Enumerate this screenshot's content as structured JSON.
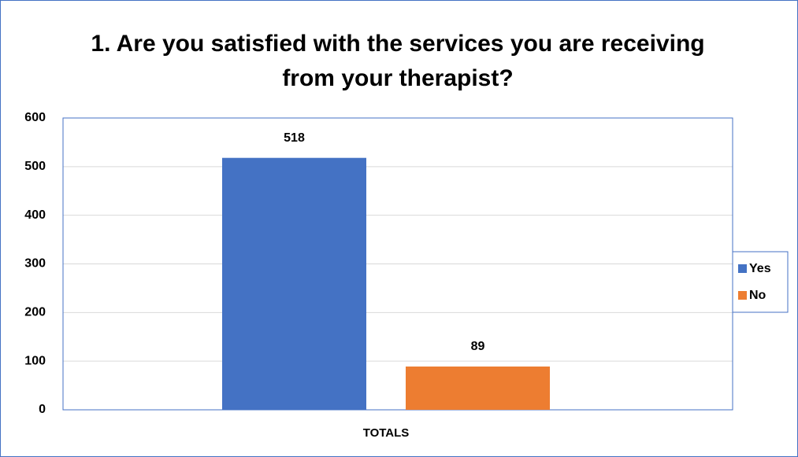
{
  "chart_data": {
    "type": "bar",
    "title": "1. Are you satisfied with the services you are receiving from your therapist?",
    "categories": [
      "TOTALS"
    ],
    "series": [
      {
        "name": "Yes",
        "color": "#4472c4",
        "values": [
          518
        ]
      },
      {
        "name": "No",
        "color": "#ed7d31",
        "values": [
          89
        ]
      }
    ],
    "ylim": [
      0,
      600
    ],
    "yticks": [
      0,
      100,
      200,
      300,
      400,
      500,
      600
    ],
    "grid": true,
    "legend": "right"
  }
}
